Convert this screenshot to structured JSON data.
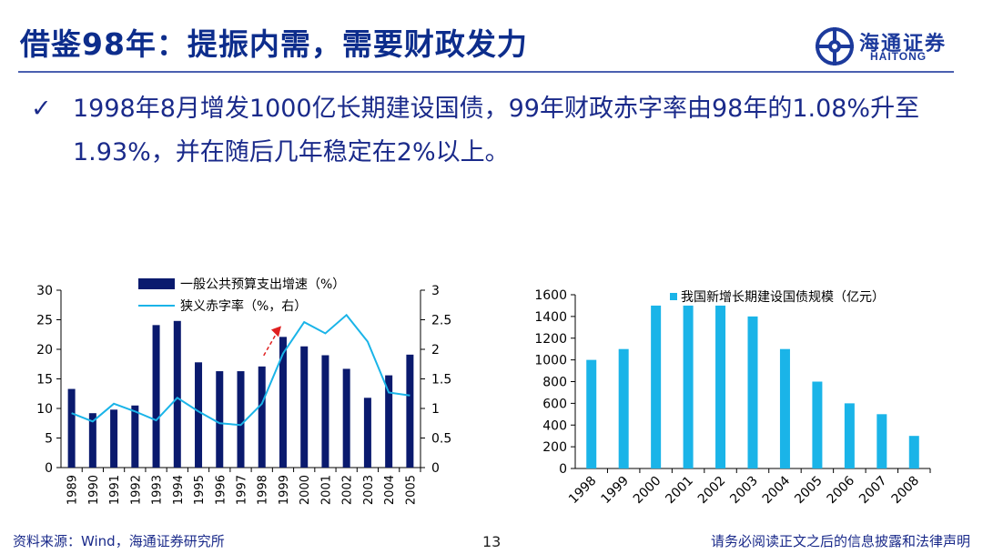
{
  "header": {
    "title": "借鉴98年：提振内需，需要财政发力",
    "logo_cn": "海通证券",
    "logo_en": "HAITONG",
    "brand_color": "#1c3a9c"
  },
  "bullet": {
    "check_icon": "✓",
    "text": "1998年8月增发1000亿长期建设国债，99年财政赤字率由98年的1.08%升至1.93%，并在随后几年稳定在2%以上。"
  },
  "chart_data": [
    {
      "type": "bar+line",
      "categories": [
        "1989",
        "1990",
        "1991",
        "1992",
        "1993",
        "1994",
        "1995",
        "1996",
        "1997",
        "1998",
        "1999",
        "2000",
        "2001",
        "2002",
        "2003",
        "2004",
        "2005"
      ],
      "series": [
        {
          "name": "一般公共预算支出增速（%）",
          "kind": "bar",
          "axis": "left",
          "color": "#0a1a6e",
          "values": [
            13.3,
            9.2,
            9.8,
            10.5,
            24.1,
            24.8,
            17.8,
            16.3,
            16.3,
            17.1,
            22.1,
            20.5,
            19.0,
            16.7,
            11.8,
            15.6,
            19.1
          ]
        },
        {
          "name": "狭义赤字率（%，右）",
          "kind": "line",
          "axis": "right",
          "color": "#1ab4e8",
          "values": [
            0.92,
            0.78,
            1.08,
            0.95,
            0.8,
            1.18,
            0.95,
            0.75,
            0.72,
            1.08,
            1.93,
            2.46,
            2.27,
            2.58,
            2.13,
            1.27,
            1.22
          ]
        }
      ],
      "ylim_left": [
        0,
        30
      ],
      "yticks_left": [
        "0",
        "5",
        "10",
        "15",
        "20",
        "25",
        "30"
      ],
      "ylim_right": [
        0,
        3
      ],
      "yticks_right": [
        "0",
        "0.5",
        "1",
        "1.5",
        "2",
        "2.5",
        "3"
      ],
      "legend": "top-center",
      "annotation": {
        "type": "dashed-arrow",
        "color": "#e02020",
        "from_category": "1998",
        "to_category": "1999"
      }
    },
    {
      "type": "bar",
      "categories": [
        "1998",
        "1999",
        "2000",
        "2001",
        "2002",
        "2003",
        "2004",
        "2005",
        "2006",
        "2007",
        "2008"
      ],
      "series": [
        {
          "name": "我国新增长期建设国债规模（亿元）",
          "color": "#1ab4e8",
          "values": [
            1000,
            1100,
            1500,
            1500,
            1500,
            1400,
            1100,
            800,
            600,
            500,
            300
          ]
        }
      ],
      "ylim": [
        0,
        1600
      ],
      "yticks": [
        "0",
        "200",
        "400",
        "600",
        "800",
        "1000",
        "1200",
        "1400",
        "1600"
      ],
      "legend": "top-center"
    }
  ],
  "footer": {
    "source": "资料来源：Wind，海通证券研究所",
    "page": "13",
    "disclaimer": "请务必阅读正文之后的信息披露和法律声明"
  }
}
